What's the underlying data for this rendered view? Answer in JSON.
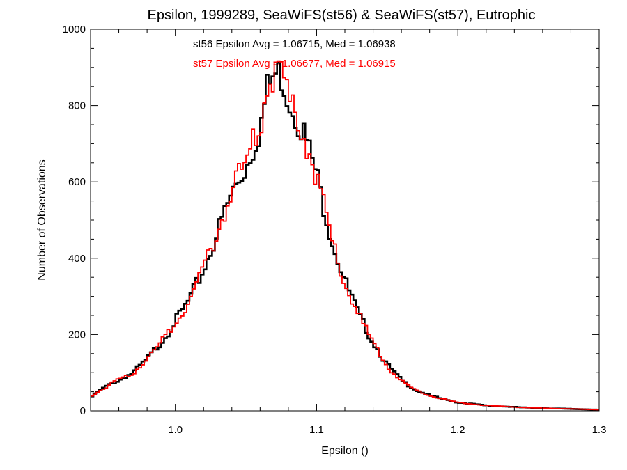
{
  "chart_data": {
    "type": "line",
    "title": "Epsilon, 1999289, SeaWiFS(st56) & SeaWiFS(st57), Eutrophic",
    "xlabel": "Epsilon ()",
    "ylabel": "Number of Observations",
    "xlim": [
      0.94,
      1.3
    ],
    "ylim": [
      0,
      1000
    ],
    "x_ticks": [
      1.0,
      1.1,
      1.2,
      1.3
    ],
    "x_tick_labels": [
      "1.0",
      "1.1",
      "1.2",
      "1.3"
    ],
    "y_ticks": [
      0,
      200,
      400,
      600,
      800,
      1000
    ],
    "y_tick_labels": [
      "0",
      "200",
      "400",
      "600",
      "800",
      "1000"
    ],
    "grid": false,
    "annotations": [
      {
        "text": "st56 Epsilon Avg = 1.06715, Med = 1.06938",
        "color": "#000000"
      },
      {
        "text": "st57 Epsilon Avg = 1.06677, Med = 1.06915",
        "color": "#ff0000"
      }
    ],
    "x": [
      0.94,
      0.95,
      0.96,
      0.97,
      0.98,
      0.99,
      1.0,
      1.01,
      1.02,
      1.03,
      1.04,
      1.05,
      1.06,
      1.065,
      1.07,
      1.075,
      1.08,
      1.085,
      1.09,
      1.1,
      1.11,
      1.12,
      1.13,
      1.14,
      1.15,
      1.16,
      1.17,
      1.18,
      1.19,
      1.2,
      1.22,
      1.25,
      1.28,
      1.3
    ],
    "series": [
      {
        "color": "#000000",
        "values": [
          35,
          62,
          80,
          100,
          135,
          180,
          235,
          290,
          370,
          470,
          570,
          640,
          740,
          840,
          880,
          880,
          820,
          780,
          740,
          620,
          460,
          340,
          250,
          180,
          120,
          80,
          55,
          40,
          30,
          22,
          14,
          8,
          5,
          3
        ]
      },
      {
        "color": "#ff0000",
        "values": [
          38,
          60,
          82,
          98,
          138,
          178,
          232,
          288,
          368,
          472,
          575,
          650,
          745,
          850,
          870,
          885,
          815,
          790,
          735,
          615,
          455,
          335,
          248,
          178,
          118,
          78,
          54,
          40,
          30,
          22,
          14,
          8,
          5,
          3
        ]
      }
    ]
  }
}
